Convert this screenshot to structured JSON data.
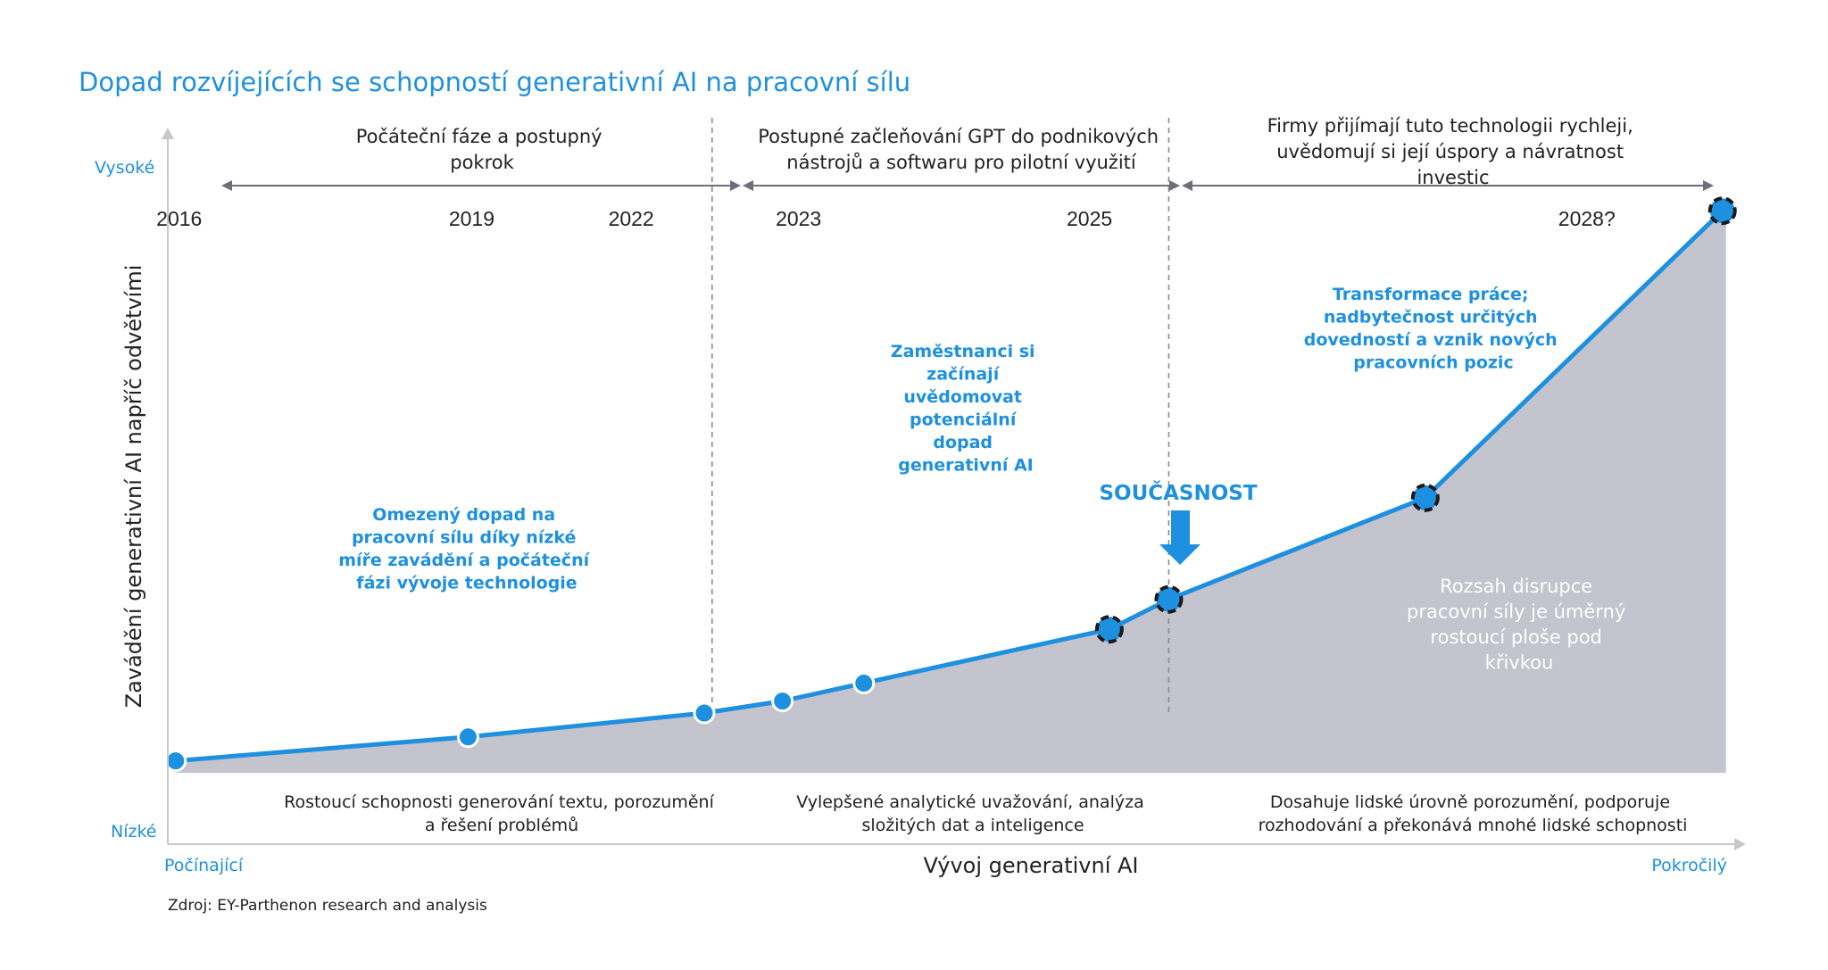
{
  "chart_data": {
    "type": "area",
    "title": "Dopad rozvíjejících se schopností generativní AI na pracovní sílu",
    "xlabel": "Vývoj generativní  AI",
    "ylabel": "Zavádění generativní AI napříč odvětvími",
    "x_axis": {
      "start_label": "Počínající",
      "end_label": "Pokročilý"
    },
    "y_axis": {
      "low_label": "Nízké",
      "high_label": "Vysoké"
    },
    "ylim": [
      0,
      100
    ],
    "points": [
      {
        "x": 0.0,
        "y": 2,
        "style": "solid"
      },
      {
        "x": 1.87,
        "y": 6,
        "style": "solid"
      },
      {
        "x": 3.38,
        "y": 10,
        "style": "solid"
      },
      {
        "x": 3.88,
        "y": 12,
        "style": "solid"
      },
      {
        "x": 4.4,
        "y": 15,
        "style": "solid"
      },
      {
        "x": 5.97,
        "y": 24,
        "style": "dashed"
      },
      {
        "x": 6.35,
        "y": 29,
        "style": "dashed"
      },
      {
        "x": 7.99,
        "y": 46,
        "style": "dashed"
      },
      {
        "x": 9.89,
        "y": 94,
        "style": "dashed"
      }
    ],
    "xlim": [
      -0.05,
      9.92
    ],
    "year_labels": [
      {
        "x": 0.0,
        "label": "2016"
      },
      {
        "x": 1.87,
        "label": "2019"
      },
      {
        "x": 2.89,
        "label": "2022"
      },
      {
        "x": 3.96,
        "label": "2023"
      },
      {
        "x": 5.82,
        "label": "2025"
      },
      {
        "x": 9.0,
        "label": "2028?"
      }
    ],
    "phase_dividers": [
      3.43,
      6.35
    ],
    "phases": [
      {
        "lines": [
          "Počáteční fáze a postupný",
          "pokrok"
        ]
      },
      {
        "lines": [
          "Postupné začleňování GPT do podnikových",
          "nástrojů a softwaru pro pilotní využití"
        ]
      },
      {
        "lines": [
          "Firmy přijímají tuto technologii rychleji,",
          "uvědomují si její úspory a návratnost",
          "investic"
        ]
      }
    ],
    "annotations": [
      {
        "id": "limited",
        "color": "#1e90e0",
        "lines": [
          "Omezený dopad na",
          "pracovní sílu díky nízké",
          "míře zavádění a počáteční",
          "fázi vývoje technologie"
        ]
      },
      {
        "id": "aware",
        "color": "#1e90e0",
        "lines": [
          "Zaměstnanci si",
          "začínají",
          "uvědomovat",
          "potenciální",
          "dopad",
          "generativní AI"
        ]
      },
      {
        "id": "transform",
        "color": "#1e90e0",
        "lines": [
          "Transformace práce;",
          "nadbytečnost určitých",
          "dovedností a vznik nových",
          "pracovních pozic"
        ]
      },
      {
        "id": "disruption",
        "color": "#ffffff",
        "lines": [
          "Rozsah disrupce",
          "pracovní síly je úměrný",
          "rostoucí ploše pod",
          "křivkou"
        ]
      }
    ],
    "current_marker": {
      "label": "SOUČASNOST",
      "x": 6.35
    },
    "bottom_labels": [
      {
        "lines": [
          "Rostoucí schopnosti generování textu, porozumění",
          "a řešení problémů"
        ]
      },
      {
        "lines": [
          "Vylepšené analytické uvažování, analýza",
          "složitých dat a inteligence"
        ]
      },
      {
        "lines": [
          "Dosahuje lidské úrovně porozumění, podporuje",
          "rozhodování a překonává mnohé lidské schopnosti"
        ]
      }
    ],
    "source": "Zdroj: EY-Parthenon research and analysis",
    "colors": {
      "accent": "#1e90e0",
      "line": "#1e90e0",
      "area": "#c3c4cd",
      "axis": "#c8c8cc",
      "phase_arrow": "#6e6e78",
      "divider": "#8a8a8a",
      "text": "#222222"
    }
  }
}
